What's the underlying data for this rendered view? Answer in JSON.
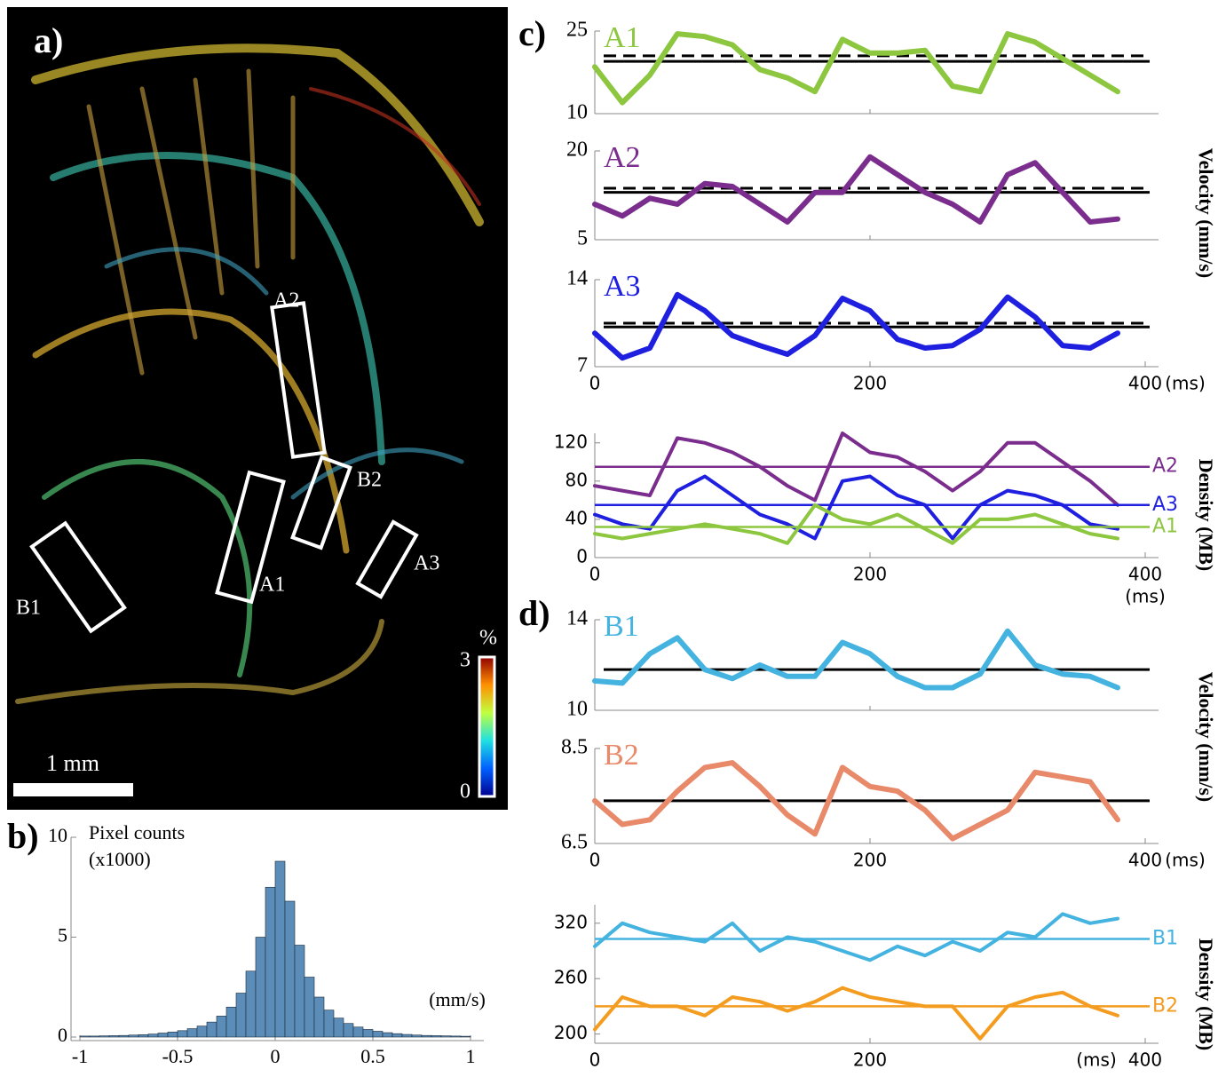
{
  "image_panel": {
    "panel_label": "a)",
    "regions": [
      "A2",
      "B2",
      "A1",
      "A3",
      "B1"
    ],
    "scale_bar": "1 mm",
    "colorbar": {
      "unit": "%",
      "ticks": [
        0,
        3
      ]
    }
  },
  "chart_data": [
    {
      "type": "histogram",
      "panel_label": "b)",
      "ylabel": "Pixel counts",
      "ylabel_unit": "(x1000)",
      "xunit": "(mm/s)",
      "color": "#5b8db8",
      "bins": [
        -1,
        -0.95,
        -0.9,
        -0.85,
        -0.8,
        -0.75,
        -0.7,
        -0.65,
        -0.6,
        -0.55,
        -0.5,
        -0.45,
        -0.4,
        -0.35,
        -0.3,
        -0.25,
        -0.2,
        -0.15,
        -0.1,
        -0.05,
        0,
        0.05,
        0.1,
        0.15,
        0.2,
        0.25,
        0.3,
        0.35,
        0.4,
        0.45,
        0.5,
        0.55,
        0.6,
        0.65,
        0.7,
        0.75,
        0.8,
        0.85,
        0.9,
        0.95,
        1
      ],
      "values": [
        0.05,
        0.05,
        0.06,
        0.07,
        0.08,
        0.1,
        0.12,
        0.15,
        0.2,
        0.25,
        0.32,
        0.42,
        0.55,
        0.75,
        1.05,
        1.5,
        2.2,
        3.3,
        5.0,
        7.5,
        8.8,
        6.8,
        4.6,
        3.0,
        2.0,
        1.35,
        0.95,
        0.68,
        0.5,
        0.38,
        0.29,
        0.22,
        0.17,
        0.13,
        0.1,
        0.08,
        0.07,
        0.06,
        0.05,
        0.04
      ],
      "xlim": [
        -1,
        1
      ],
      "xticks": [
        -1,
        -0.5,
        0,
        0.5,
        1
      ],
      "ylim": [
        0,
        10
      ],
      "yticks": [
        0,
        5,
        10
      ]
    },
    {
      "type": "line",
      "panel_label": "c)",
      "x": [
        0,
        20,
        40,
        60,
        80,
        100,
        120,
        140,
        160,
        180,
        200,
        220,
        240,
        260,
        280,
        300,
        320,
        340,
        360,
        380
      ],
      "series": [
        {
          "name": "A1",
          "color": "#8dc63f",
          "values": [
            18.5,
            12,
            17,
            24.5,
            24,
            22.5,
            18,
            16.5,
            14,
            23.5,
            21,
            21,
            21.5,
            15,
            14,
            24.5,
            23,
            20,
            17,
            14
          ]
        }
      ],
      "reference_lines": [
        {
          "value": 19.5,
          "style": "solid"
        },
        {
          "value": 20.5,
          "style": "dashed"
        }
      ],
      "xlim": [
        0,
        400
      ],
      "ylim": [
        10,
        25
      ],
      "yticks": [
        10,
        25
      ]
    },
    {
      "type": "line",
      "ylabel": "Velocity (mm/s)",
      "x": [
        0,
        20,
        40,
        60,
        80,
        100,
        120,
        140,
        160,
        180,
        200,
        220,
        240,
        260,
        280,
        300,
        320,
        340,
        360,
        380
      ],
      "series": [
        {
          "name": "A2",
          "color": "#7b2d8e",
          "values": [
            11,
            9,
            12,
            11,
            14.5,
            14,
            11,
            8,
            13,
            13,
            19,
            16,
            13,
            11,
            8,
            16,
            18,
            13,
            8,
            8.5
          ]
        }
      ],
      "reference_lines": [
        {
          "value": 13,
          "style": "solid"
        },
        {
          "value": 13.7,
          "style": "dashed"
        }
      ],
      "xlim": [
        0,
        400
      ],
      "ylim": [
        5,
        20
      ],
      "yticks": [
        5,
        20
      ]
    },
    {
      "type": "line",
      "xunit": "(ms)",
      "x": [
        0,
        20,
        40,
        60,
        80,
        100,
        120,
        140,
        160,
        180,
        200,
        220,
        240,
        260,
        280,
        300,
        320,
        340,
        360,
        380
      ],
      "series": [
        {
          "name": "A3",
          "color": "#1f1fe0",
          "values": [
            9.7,
            7.7,
            8.5,
            12.8,
            11.5,
            9.5,
            8.7,
            8.0,
            9.5,
            12.5,
            11.5,
            9.2,
            8.5,
            8.7,
            10,
            12.6,
            11,
            8.7,
            8.5,
            9.7
          ]
        }
      ],
      "reference_lines": [
        {
          "value": 10.2,
          "style": "solid"
        },
        {
          "value": 10.5,
          "style": "dashed"
        }
      ],
      "xlim": [
        0,
        400
      ],
      "xticks": [
        0,
        200,
        400
      ],
      "ylim": [
        7,
        14
      ],
      "yticks": [
        7,
        14
      ]
    },
    {
      "type": "density",
      "ylabel": "Density (MB)",
      "xunit": "(ms)",
      "x": [
        0,
        20,
        40,
        60,
        80,
        100,
        120,
        140,
        160,
        180,
        200,
        220,
        240,
        260,
        280,
        300,
        320,
        340,
        360,
        380
      ],
      "series": [
        {
          "name": "A2",
          "color": "#7b2d8e",
          "mean": 95,
          "values": [
            75,
            70,
            65,
            125,
            120,
            110,
            95,
            75,
            60,
            130,
            110,
            105,
            90,
            70,
            90,
            120,
            120,
            100,
            80,
            55
          ]
        },
        {
          "name": "A3",
          "color": "#1f1fe0",
          "mean": 55,
          "values": [
            45,
            35,
            30,
            70,
            85,
            65,
            45,
            35,
            20,
            80,
            85,
            65,
            55,
            20,
            55,
            70,
            65,
            55,
            35,
            30
          ]
        },
        {
          "name": "A1",
          "color": "#8dc63f",
          "mean": 32,
          "values": [
            25,
            20,
            25,
            30,
            35,
            30,
            25,
            15,
            55,
            40,
            35,
            45,
            30,
            15,
            40,
            40,
            45,
            35,
            25,
            20
          ]
        }
      ],
      "xlim": [
        0,
        400
      ],
      "xticks": [
        0,
        200,
        400
      ],
      "ylim": [
        0,
        130
      ],
      "yticks": [
        0,
        40,
        80,
        120
      ]
    },
    {
      "type": "line",
      "panel_label": "d)",
      "ylabel": "Velocity (mm/s)",
      "x": [
        0,
        20,
        40,
        60,
        80,
        100,
        120,
        140,
        160,
        180,
        200,
        220,
        240,
        260,
        280,
        300,
        320,
        340,
        360,
        380
      ],
      "series": [
        {
          "name": "B1",
          "color": "#45b3e0",
          "values": [
            11.3,
            11.2,
            12.5,
            13.2,
            11.8,
            11.4,
            12,
            11.5,
            11.5,
            13,
            12.5,
            11.5,
            11,
            11,
            11.6,
            13.5,
            12,
            11.6,
            11.5,
            11
          ]
        }
      ],
      "reference_lines": [
        {
          "value": 11.8,
          "style": "solid"
        }
      ],
      "xlim": [
        0,
        400
      ],
      "ylim": [
        10,
        14
      ],
      "yticks": [
        10,
        14
      ]
    },
    {
      "type": "line",
      "xunit": "(ms)",
      "x": [
        0,
        20,
        40,
        60,
        80,
        100,
        120,
        140,
        160,
        180,
        200,
        220,
        240,
        260,
        280,
        300,
        320,
        340,
        360,
        380
      ],
      "series": [
        {
          "name": "B2",
          "color": "#e8896a",
          "values": [
            7.4,
            6.9,
            7.0,
            7.6,
            8.1,
            8.2,
            7.7,
            7.1,
            6.7,
            8.1,
            7.7,
            7.6,
            7.2,
            6.6,
            6.9,
            7.2,
            8.0,
            7.9,
            7.8,
            7.0
          ]
        }
      ],
      "reference_lines": [
        {
          "value": 7.4,
          "style": "solid"
        }
      ],
      "xlim": [
        0,
        400
      ],
      "xticks": [
        0,
        200,
        400
      ],
      "ylim": [
        6.5,
        8.5
      ],
      "yticks": [
        6.5,
        8.5
      ]
    },
    {
      "type": "density",
      "ylabel": "Density (MB)",
      "xunit": "(ms)",
      "x": [
        0,
        20,
        40,
        60,
        80,
        100,
        120,
        140,
        160,
        180,
        200,
        220,
        240,
        260,
        280,
        300,
        320,
        340,
        360,
        380
      ],
      "series": [
        {
          "name": "B1",
          "color": "#45b3e0",
          "mean": 303,
          "values": [
            295,
            320,
            310,
            305,
            300,
            320,
            290,
            305,
            300,
            290,
            280,
            295,
            285,
            300,
            290,
            310,
            305,
            330,
            320,
            325
          ]
        },
        {
          "name": "B2",
          "color": "#f39c1f",
          "mean": 230,
          "values": [
            205,
            240,
            230,
            230,
            220,
            240,
            235,
            225,
            235,
            250,
            240,
            235,
            230,
            230,
            195,
            230,
            240,
            245,
            230,
            220
          ]
        }
      ],
      "xlim": [
        0,
        400
      ],
      "xticks": [
        0,
        200,
        400
      ],
      "ylim": [
        190,
        340
      ],
      "yticks": [
        200,
        260,
        320
      ]
    }
  ]
}
